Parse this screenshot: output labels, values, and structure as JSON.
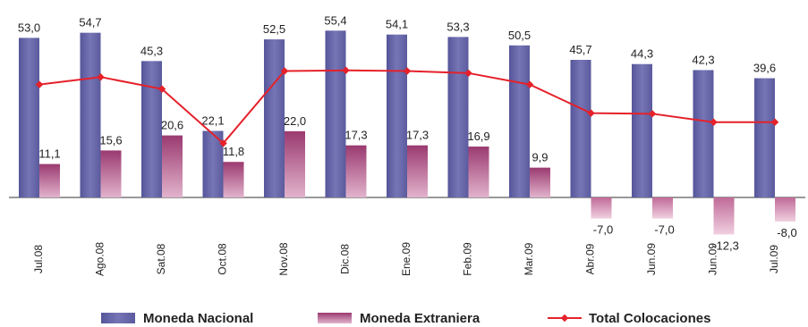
{
  "chart_data": {
    "type": "bar",
    "categories": [
      "Jul.08",
      "Ago.08",
      "Sat.08",
      "Oct.08",
      "Nov.08",
      "Dic.08",
      "Ene.09",
      "Feb.09",
      "Mar.09",
      "Abr.09",
      "Jun.09",
      "Jun.09",
      "Jul.09"
    ],
    "series": [
      {
        "name": "Moneda Nacional",
        "type": "bar",
        "values": [
          53.0,
          54.7,
          45.3,
          22.1,
          52.5,
          55.4,
          54.1,
          53.3,
          50.5,
          45.7,
          44.3,
          42.3,
          39.6
        ],
        "labels": [
          "53,0",
          "54,7",
          "45,3",
          "22,1",
          "52,5",
          "55,4",
          "54,1",
          "53,3",
          "50,5",
          "45,7",
          "44,3",
          "42,3",
          "39,6"
        ]
      },
      {
        "name": "Moneda Extraniera",
        "type": "bar",
        "values": [
          11.1,
          15.6,
          20.6,
          11.8,
          22.0,
          17.3,
          17.3,
          16.9,
          9.9,
          -7.0,
          -7.0,
          -12.3,
          -8.0
        ],
        "labels": [
          "11,1",
          "15,6",
          "20,6",
          "11,8",
          "22,0",
          "17,3",
          "17,3",
          "16,9",
          "9,9",
          "-7,0",
          "-7,0",
          "-12,3",
          "-8,0"
        ]
      },
      {
        "name": "Total Colocaciones",
        "type": "line",
        "values": [
          37.5,
          40.0,
          36.0,
          18.0,
          42.0,
          42.2,
          42.0,
          41.3,
          37.5,
          28.0,
          27.8,
          25.0,
          25.0
        ]
      }
    ],
    "ylim": [
      -15,
      60
    ],
    "colors": {
      "nacional": "#6a6aaa",
      "extranjera": "#a3487a",
      "total": "#e5212a"
    },
    "legend_position": "bottom"
  }
}
